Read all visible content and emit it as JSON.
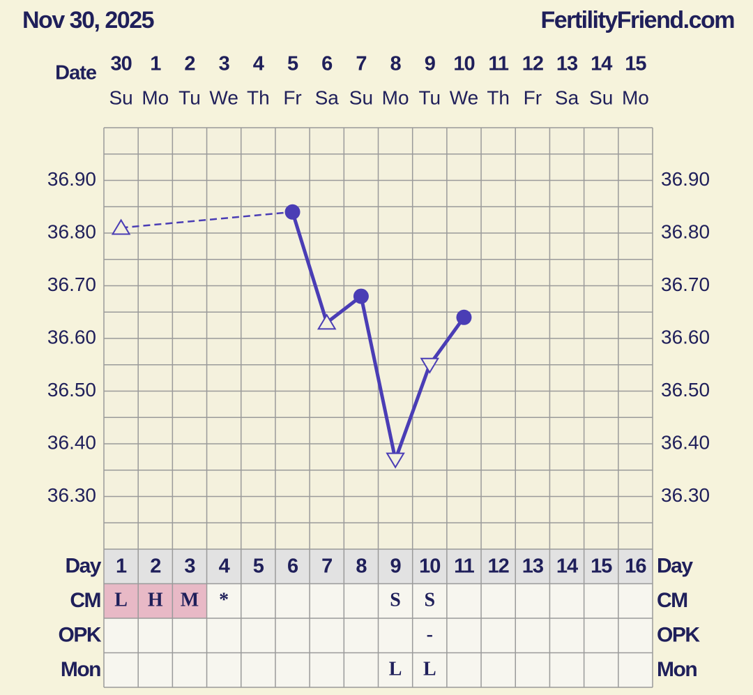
{
  "chart_data": {
    "type": "line",
    "title": "Nov 30, 2025",
    "site": "FertilityFriend.com",
    "date_label": "Date",
    "categories": [
      "30",
      "1",
      "2",
      "3",
      "4",
      "5",
      "6",
      "7",
      "8",
      "9",
      "10",
      "11",
      "12",
      "13",
      "14",
      "15"
    ],
    "weekdays": [
      "Su",
      "Mo",
      "Tu",
      "We",
      "Th",
      "Fr",
      "Sa",
      "Su",
      "Mo",
      "Tu",
      "We",
      "Th",
      "Fr",
      "Sa",
      "Su",
      "Mo"
    ],
    "series": [
      {
        "color": "#4a3db5",
        "values": [
          36.81,
          null,
          null,
          null,
          null,
          36.84,
          36.63,
          36.68,
          36.37,
          36.55,
          36.64,
          null,
          null,
          null,
          null,
          null
        ],
        "markers": [
          "triangle-up",
          null,
          null,
          null,
          null,
          "circle",
          "triangle-up",
          "circle",
          "triangle-down",
          "triangle-down",
          "circle",
          null,
          null,
          null,
          null,
          null
        ]
      }
    ],
    "connect_gaps": "dashed",
    "ylim": [
      36.2,
      37.0
    ],
    "yticks": [
      {
        "value": 36.3,
        "label": "36.30"
      },
      {
        "value": 36.4,
        "label": "36.40"
      },
      {
        "value": 36.5,
        "label": "36.50"
      },
      {
        "value": 36.6,
        "label": "36.60"
      },
      {
        "value": 36.7,
        "label": "36.70"
      },
      {
        "value": 36.8,
        "label": "36.80"
      },
      {
        "value": 36.9,
        "label": "36.90"
      }
    ],
    "grid": true,
    "grid_step": 0.05,
    "rows": [
      {
        "label": "Day",
        "cells": [
          "1",
          "2",
          "3",
          "4",
          "5",
          "6",
          "7",
          "8",
          "9",
          "10",
          "11",
          "12",
          "13",
          "14",
          "15",
          "16"
        ]
      },
      {
        "label": "CM",
        "cells": [
          "L",
          "H",
          "M",
          "*",
          null,
          null,
          null,
          null,
          "S",
          "S",
          null,
          null,
          null,
          null,
          null,
          null
        ],
        "highlight": [
          true,
          true,
          true,
          false,
          false,
          false,
          false,
          false,
          false,
          false,
          false,
          false,
          false,
          false,
          false,
          false
        ],
        "highlight_color": "#e8b9c6"
      },
      {
        "label": "OPK",
        "cells": [
          null,
          null,
          null,
          null,
          null,
          null,
          null,
          null,
          null,
          "-",
          null,
          null,
          null,
          null,
          null,
          null
        ]
      },
      {
        "label": "Mon",
        "cells": [
          null,
          null,
          null,
          null,
          null,
          null,
          null,
          null,
          "L",
          "L",
          null,
          null,
          null,
          null,
          null,
          null
        ]
      }
    ]
  }
}
